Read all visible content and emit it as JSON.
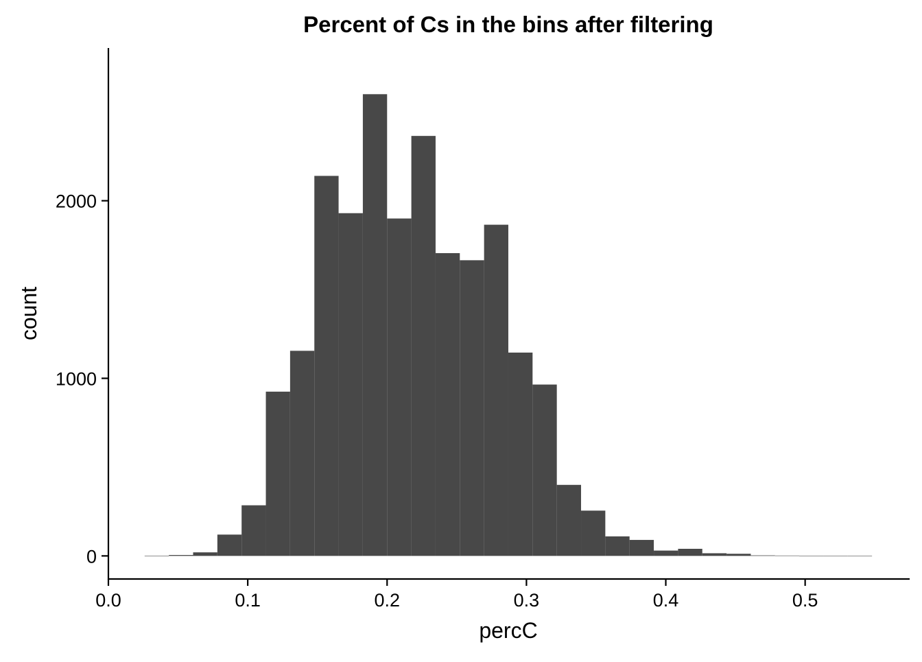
{
  "chart_data": {
    "type": "bar",
    "subtype": "histogram",
    "title": "Percent of Cs in the bins after filtering",
    "xlabel": "percC",
    "ylabel": "count",
    "xlim": [
      0.0,
      0.575
    ],
    "ylim": [
      -130,
      2860
    ],
    "x_ticks": [
      0.0,
      0.1,
      0.2,
      0.3,
      0.4,
      0.5
    ],
    "x_tick_labels": [
      "0.0",
      "0.1",
      "0.2",
      "0.3",
      "0.4",
      "0.5"
    ],
    "y_ticks": [
      0,
      1000,
      2000
    ],
    "y_tick_labels": [
      "0",
      "1000",
      "2000"
    ],
    "grid": false,
    "legend": "none",
    "bar_color": "#484848",
    "bins": [
      {
        "x0": 0.026,
        "x1": 0.0434,
        "count": 1
      },
      {
        "x0": 0.0434,
        "x1": 0.0608,
        "count": 5
      },
      {
        "x0": 0.0608,
        "x1": 0.0782,
        "count": 20
      },
      {
        "x0": 0.0782,
        "x1": 0.0956,
        "count": 120
      },
      {
        "x0": 0.0956,
        "x1": 0.113,
        "count": 285
      },
      {
        "x0": 0.113,
        "x1": 0.1304,
        "count": 925
      },
      {
        "x0": 0.1304,
        "x1": 0.1478,
        "count": 1155
      },
      {
        "x0": 0.1478,
        "x1": 0.1652,
        "count": 2140
      },
      {
        "x0": 0.1652,
        "x1": 0.1826,
        "count": 1930
      },
      {
        "x0": 0.1826,
        "x1": 0.2,
        "count": 2600
      },
      {
        "x0": 0.2,
        "x1": 0.2174,
        "count": 1900
      },
      {
        "x0": 0.2174,
        "x1": 0.2348,
        "count": 2365
      },
      {
        "x0": 0.2348,
        "x1": 0.2522,
        "count": 1705
      },
      {
        "x0": 0.2522,
        "x1": 0.2696,
        "count": 1665
      },
      {
        "x0": 0.2696,
        "x1": 0.287,
        "count": 1865
      },
      {
        "x0": 0.287,
        "x1": 0.3044,
        "count": 1145
      },
      {
        "x0": 0.3044,
        "x1": 0.3218,
        "count": 965
      },
      {
        "x0": 0.3218,
        "x1": 0.3392,
        "count": 400
      },
      {
        "x0": 0.3392,
        "x1": 0.3566,
        "count": 255
      },
      {
        "x0": 0.3566,
        "x1": 0.374,
        "count": 110
      },
      {
        "x0": 0.374,
        "x1": 0.3914,
        "count": 90
      },
      {
        "x0": 0.3914,
        "x1": 0.4088,
        "count": 30
      },
      {
        "x0": 0.4088,
        "x1": 0.4262,
        "count": 40
      },
      {
        "x0": 0.4262,
        "x1": 0.4436,
        "count": 15
      },
      {
        "x0": 0.4436,
        "x1": 0.461,
        "count": 12
      },
      {
        "x0": 0.461,
        "x1": 0.4784,
        "count": 3
      },
      {
        "x0": 0.4784,
        "x1": 0.4958,
        "count": 2
      },
      {
        "x0": 0.4958,
        "x1": 0.5132,
        "count": 0
      },
      {
        "x0": 0.5132,
        "x1": 0.5306,
        "count": 1
      },
      {
        "x0": 0.5306,
        "x1": 0.548,
        "count": 1
      }
    ]
  }
}
